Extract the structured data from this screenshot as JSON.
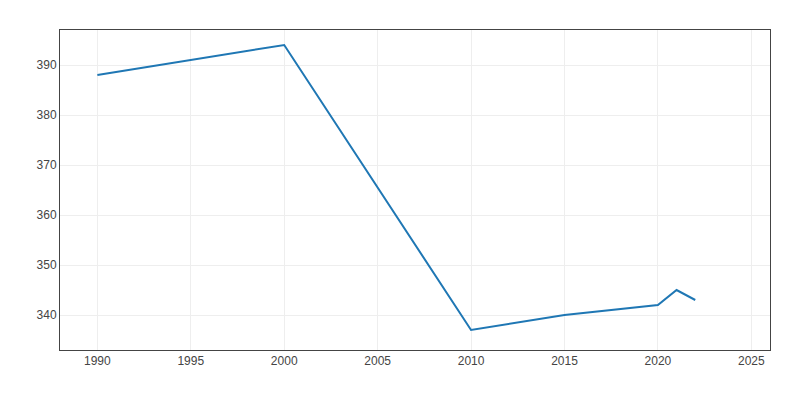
{
  "chart_data": {
    "type": "line",
    "x": [
      1990,
      2000,
      2010,
      2015,
      2020,
      2021,
      2022
    ],
    "values": [
      388,
      394,
      337,
      340,
      342,
      345,
      343
    ],
    "xlim": [
      1988,
      2026
    ],
    "xticks": [
      1990,
      1995,
      2000,
      2005,
      2010,
      2015,
      2020,
      2025
    ],
    "ylim": [
      333,
      397
    ],
    "yticks": [
      340,
      350,
      360,
      370,
      380,
      390
    ],
    "grid": true
  }
}
